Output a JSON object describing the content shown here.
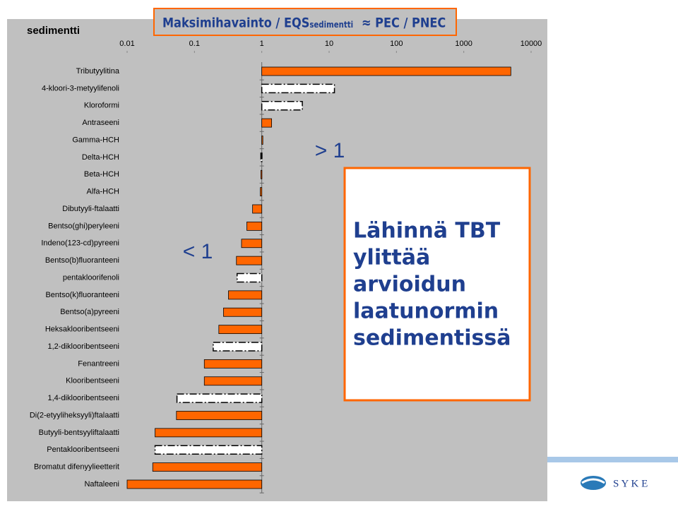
{
  "chart_data": {
    "type": "bar",
    "orientation": "horizontal",
    "title_main": "Maksimihavainto / EQS",
    "title_sub": "sedimentti",
    "title_rest": "≈ PEC / PNEC",
    "label": "sedimentti",
    "categories": [
      "Tributyylitina",
      "4-kloori-3-metyylifenoli",
      "Kloroformi",
      "Antraseeni",
      "Gamma-HCH",
      "Delta-HCH",
      "Beta-HCH",
      "Alfa-HCH",
      "Dibutyyli-ftalaatti",
      "Bentso(ghi)peryleeni",
      "Indeno(123-cd)pyreeni",
      "Bentso(b)fluoranteeni",
      "pentakloorifenoli",
      "Bentso(k)fluoranteeni",
      "Bentso(a)pyreeni",
      "Heksaklooribentseeni",
      "1,2-diklooribentseeni",
      "Fenantreeni",
      "Klooribentseeni",
      "1,4-diklooribentseeni",
      "Di(2-etyyliheksyyli)ftalaatti",
      "Butyyli-bentsyyliftalaatti",
      "Pentaklooribentseeni",
      "Bromatut difenyylieetterit",
      "Naftaleeni"
    ],
    "values": [
      5000,
      12,
      4,
      1.4,
      1,
      0.97,
      0.97,
      0.95,
      0.73,
      0.6,
      0.5,
      0.42,
      0.43,
      0.32,
      0.27,
      0.23,
      0.19,
      0.14,
      0.14,
      0.055,
      0.054,
      0.026,
      0.026,
      0.024,
      0.01
    ],
    "dashed": [
      false,
      true,
      true,
      false,
      false,
      true,
      false,
      false,
      false,
      false,
      false,
      false,
      true,
      false,
      false,
      false,
      true,
      false,
      false,
      true,
      false,
      false,
      true,
      false,
      false
    ],
    "color": "#ff6600",
    "log_scale": true,
    "xlim": [
      0.01,
      10000
    ],
    "xticks": [
      0.01,
      0.1,
      1,
      10,
      100,
      1000,
      10000
    ],
    "annotation_above": "> 1",
    "annotation_below": "< 1",
    "note_lines": [
      "Lähinnä TBT",
      "ylittää",
      "arvioidun",
      "laatunormin",
      "sedimentissä"
    ],
    "logo_text": "S Y K E"
  }
}
